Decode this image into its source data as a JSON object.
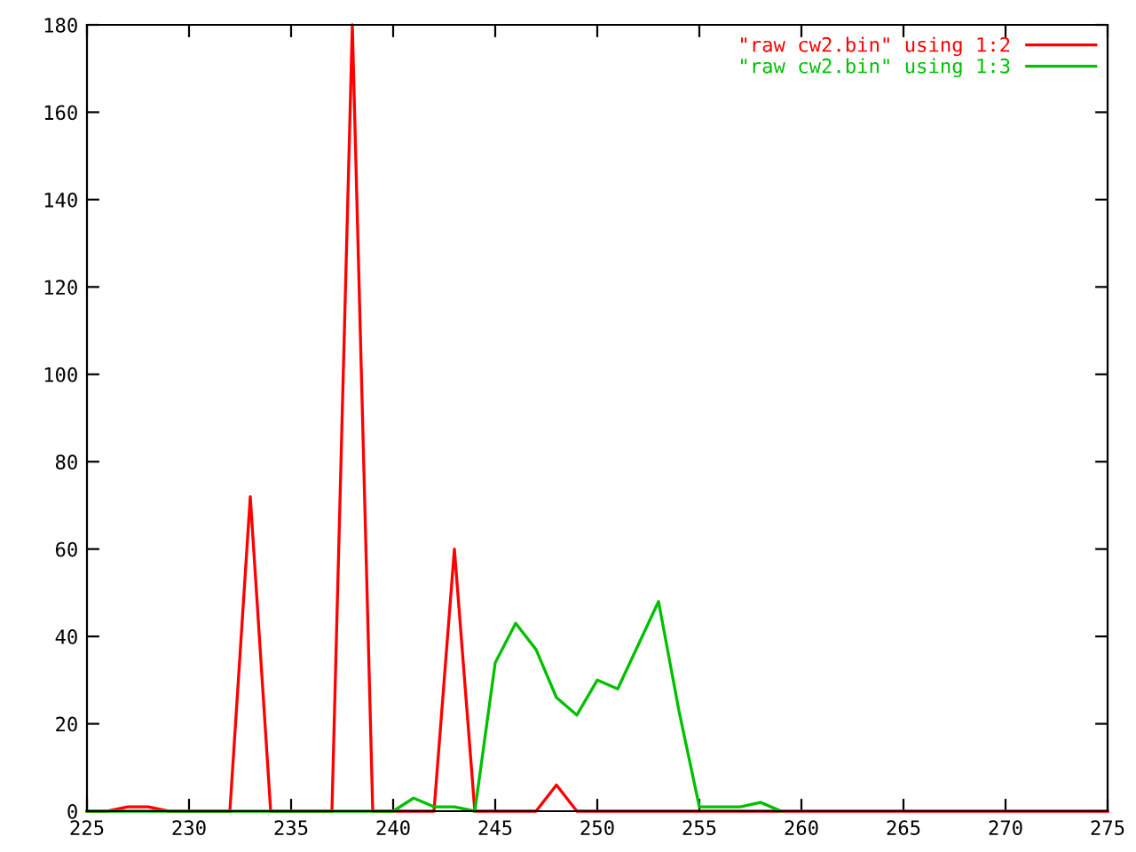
{
  "chart_data": {
    "type": "line",
    "x": [
      225,
      226,
      227,
      228,
      229,
      230,
      231,
      232,
      233,
      234,
      235,
      236,
      237,
      238,
      239,
      240,
      241,
      242,
      243,
      244,
      245,
      246,
      247,
      248,
      249,
      250,
      251,
      252,
      253,
      254,
      255,
      256,
      257,
      258,
      259,
      260,
      261,
      262,
      263,
      264,
      265,
      266,
      267,
      268,
      269,
      270,
      271,
      272,
      273,
      274,
      275
    ],
    "series": [
      {
        "name": "\"raw cw2.bin\" using 1:2",
        "color": "#ff0000",
        "values": [
          0,
          0,
          1,
          1,
          0,
          0,
          0,
          0,
          72,
          0,
          0,
          0,
          0,
          180,
          0,
          0,
          0,
          0,
          60,
          0,
          0,
          0,
          0,
          6,
          0,
          0,
          0,
          0,
          0,
          0,
          0,
          0,
          0,
          0,
          0,
          0,
          0,
          0,
          0,
          0,
          0,
          0,
          0,
          0,
          0,
          0,
          0,
          0,
          0,
          0,
          0
        ]
      },
      {
        "name": "\"raw cw2.bin\" using 1:3",
        "color": "#00c000",
        "x": [
          225,
          226,
          227,
          228,
          229,
          230,
          231,
          232,
          233,
          234,
          235,
          236,
          237,
          238,
          239,
          240,
          241,
          242,
          243,
          244,
          245,
          246,
          247,
          248,
          249,
          250,
          251,
          252,
          253,
          254,
          255,
          256,
          257,
          258,
          259
        ],
        "values": [
          0,
          0,
          0,
          0,
          0,
          0,
          0,
          0,
          0,
          0,
          0,
          0,
          0,
          0,
          0,
          0,
          3,
          1,
          1,
          0,
          34,
          43,
          37,
          26,
          22,
          30,
          28,
          38,
          48,
          23,
          1,
          1,
          1,
          2,
          0
        ]
      }
    ],
    "xlim": [
      225,
      275
    ],
    "xticks": [
      225,
      230,
      235,
      240,
      245,
      250,
      255,
      260,
      265,
      270,
      275
    ],
    "ylim": [
      0,
      180
    ],
    "yticks": [
      0,
      20,
      40,
      60,
      80,
      100,
      120,
      140,
      160,
      180
    ],
    "grid": false,
    "legend": "top right",
    "line_style": "solid",
    "marker": "none"
  }
}
